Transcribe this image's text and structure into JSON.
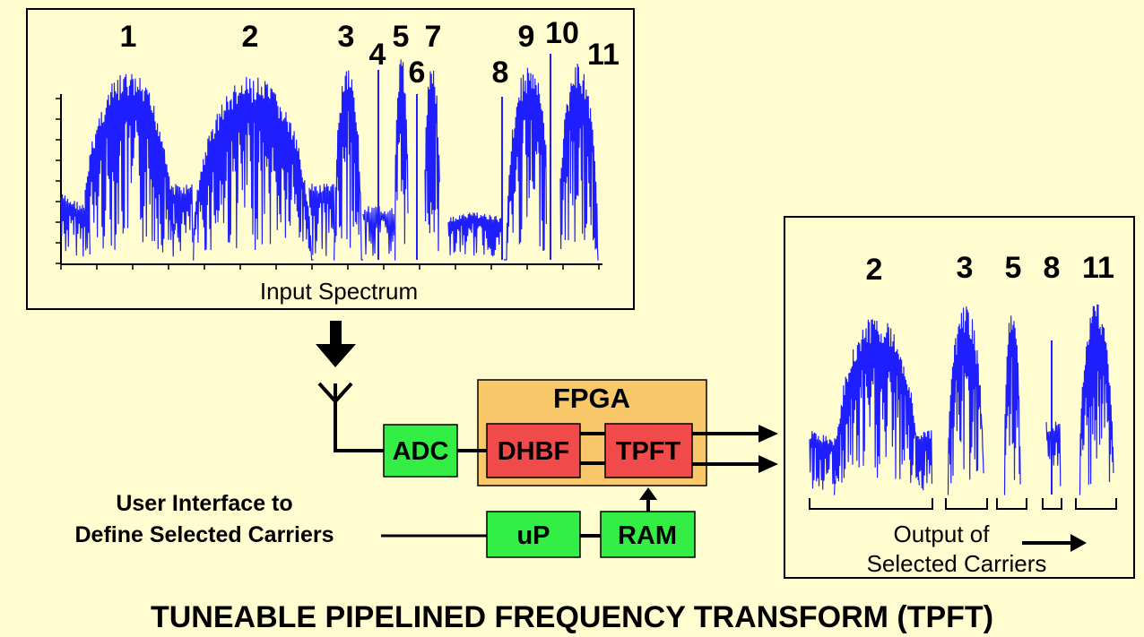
{
  "input_panel": {
    "caption": "Input Spectrum",
    "carrier_labels": [
      "1",
      "2",
      "3",
      "4",
      "5",
      "6",
      "7",
      "8",
      "9",
      "10",
      "11"
    ]
  },
  "output_panel": {
    "caption_line1": "Output of",
    "caption_line2": "Selected Carriers",
    "carrier_labels": [
      "2",
      "3",
      "5",
      "8",
      "11"
    ]
  },
  "blocks": {
    "fpga": "FPGA",
    "adc": "ADC",
    "dhbf": "DHBF",
    "tpft": "TPFT",
    "up": "uP",
    "ram": "RAM"
  },
  "user_interface": {
    "line1": "User Interface to",
    "line2": "Define Selected Carriers"
  },
  "title": "TUNEABLE PIPELINED FREQUENCY TRANSFORM (TPFT)",
  "colors": {
    "background": "#fffdd0",
    "spectrum": "#1e1eff",
    "fpga_box": "#f9c86a",
    "red_block": "#f04a4a",
    "green_block": "#33ee44"
  }
}
